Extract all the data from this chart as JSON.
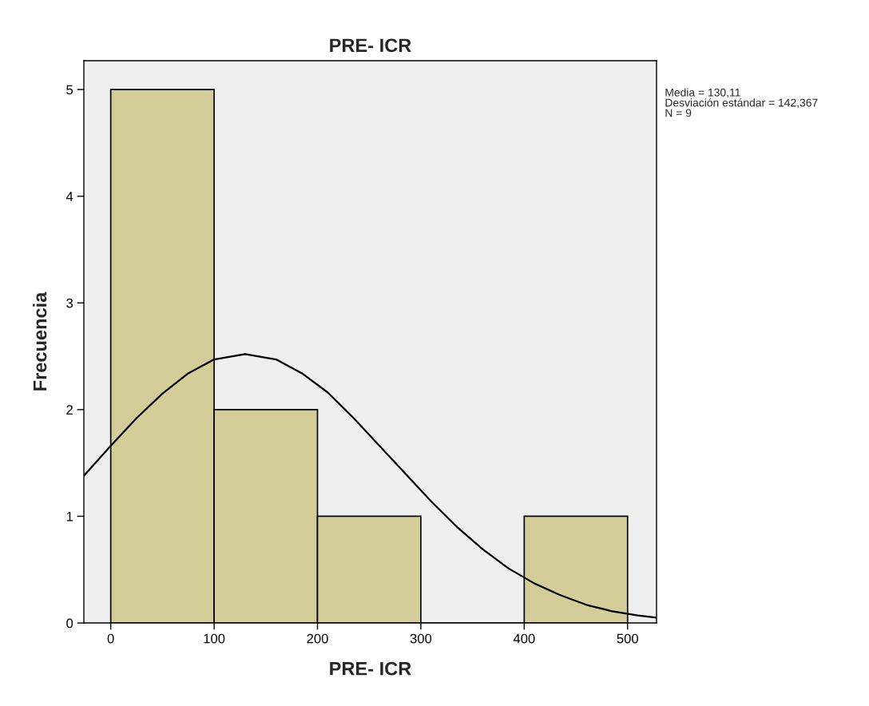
{
  "chart_data": {
    "type": "histogram",
    "title": "PRE- ICR",
    "xlabel": "PRE- ICR",
    "ylabel": "Frecuencia",
    "series": [
      {
        "type": "histogram",
        "bins": [
          0,
          100,
          200,
          300,
          400,
          500
        ],
        "values": [
          5,
          2,
          1,
          0,
          1
        ],
        "color": "#d3ce99"
      },
      {
        "type": "line",
        "color": "#000000",
        "x": [
          -26,
          0,
          25,
          50,
          75,
          100,
          130,
          160,
          185,
          210,
          235,
          260,
          285,
          310,
          335,
          360,
          385,
          410,
          435,
          460,
          485,
          510,
          528
        ],
        "values": [
          1.38,
          1.66,
          1.92,
          2.15,
          2.34,
          2.47,
          2.52,
          2.47,
          2.34,
          2.16,
          1.92,
          1.66,
          1.4,
          1.14,
          0.9,
          0.69,
          0.51,
          0.37,
          0.26,
          0.17,
          0.11,
          0.07,
          0.05
        ]
      }
    ],
    "xlim": [
      -26,
      528
    ],
    "ylim": [
      0,
      5.27
    ],
    "xticks": [
      0,
      100,
      200,
      300,
      400,
      500
    ],
    "yticks": [
      0,
      1,
      2,
      3,
      4,
      5
    ],
    "grid": false,
    "legend": false,
    "annotations": [
      "Media = 130,11",
      "Desviación estándar = 142,367",
      "N = 9"
    ]
  }
}
